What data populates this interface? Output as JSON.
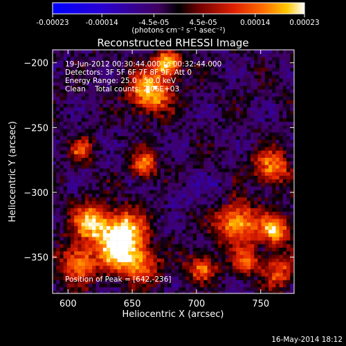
{
  "colorbar": {
    "tick_labels": [
      "-0.00023",
      "-0.00014",
      "-4.5e-05",
      "4.5e-05",
      "0.00014",
      "0.00023"
    ],
    "tick_values": [
      -0.00023,
      -0.00014,
      -4.5e-05,
      4.5e-05,
      0.00014,
      0.00023
    ],
    "range": [
      -0.00023,
      0.00023
    ],
    "units": "(photons cm⁻² s⁻¹ asec⁻²)",
    "colors": [
      "#0000ff",
      "#3a00c8",
      "#5a0070",
      "#000000",
      "#7a0000",
      "#d81400",
      "#ff6a00",
      "#ffc400",
      "#ffffff"
    ]
  },
  "chart_data": {
    "type": "heatmap",
    "title": "Reconstructed RHESSI Image",
    "xlabel": "Heliocentric X (arcsec)",
    "ylabel": "Heliocentric Y (arcsec)",
    "xlim": [
      588,
      776
    ],
    "ylim": [
      -378,
      -190
    ],
    "x_ticks": [
      600,
      650,
      700,
      750
    ],
    "y_ticks": [
      -350,
      -300,
      -250,
      -200
    ],
    "x_tick_labels": [
      "600",
      "650",
      "700",
      "750"
    ],
    "y_tick_labels": [
      "−350",
      "−300",
      "−250",
      "−200"
    ],
    "annotations": [
      "19-Jun-2012 00:30:44.000 to 00:32:44.000",
      "Detectors: 3F 5F 6F 7F 8F 9F, Att 0",
      "Energy Range: 25.0 - 50.0 keV",
      "Clean    Total counts: 2.06E+03"
    ],
    "peak_label": "Position of Peak = [642,-236]",
    "peak_position": [
      642,
      -236
    ]
  },
  "footer": {
    "timestamp": "16-May-2014 18:12"
  }
}
